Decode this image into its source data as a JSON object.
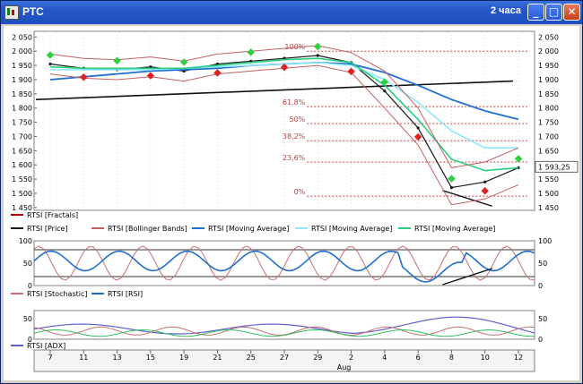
{
  "window": {
    "title": "РТС",
    "timeframe": "2 часа"
  },
  "colors": {
    "price": "#1a1a1a",
    "fractals": "#c00000",
    "bollinger": "#c46060",
    "ma_long": "#1f6fd0",
    "ma_mid": "#8fe8ff",
    "ma_short": "#26d080",
    "stochastic": "#c87070",
    "rsi": "#1f6fd0",
    "adx": "#6060d0"
  },
  "price_panel": {
    "y_ticks": [
      "2 050",
      "2 000",
      "1 950",
      "1 900",
      "1 850",
      "1 800",
      "1 750",
      "1 700",
      "1 650",
      "1 600",
      "1 550",
      "1 500",
      "1 450"
    ],
    "last_price": "1 593,25",
    "fibonacci": [
      {
        "label": "100%",
        "value": 2000
      },
      {
        "label": "61,8%",
        "value": 1805
      },
      {
        "label": "50%",
        "value": 1745
      },
      {
        "label": "38,2%",
        "value": 1685
      },
      {
        "label": "23,6%",
        "value": 1610
      },
      {
        "label": "0%",
        "value": 1490
      }
    ],
    "legend": [
      "RTSI [Fractals]",
      "RTSI [Price]",
      "RTSI [Bollinger Bands]",
      "RTSI [Moving Average]",
      "RTSI [Moving Average]",
      "RTSI [Moving Average]"
    ]
  },
  "oscillator_panel": {
    "y_ticks": [
      "100",
      "50",
      "0"
    ],
    "legend": [
      "RTSI [Stochastic]",
      "RTSI [RSI]"
    ]
  },
  "adx_panel": {
    "y_ticks": [
      "50",
      "0"
    ],
    "legend": [
      "RTSI [ADX]"
    ]
  },
  "x_axis": {
    "ticks": [
      "7",
      "11",
      "13",
      "15",
      "19",
      "21",
      "25",
      "27",
      "29",
      "2",
      "4",
      "6",
      "8",
      "10",
      "12"
    ],
    "month": "Aug"
  },
  "chart_data": {
    "type": "line",
    "ylim": [
      1440,
      2070
    ],
    "x": [
      "7",
      "11",
      "13",
      "15",
      "19",
      "21",
      "25",
      "27",
      "29",
      "2",
      "4",
      "6",
      "8",
      "10",
      "12"
    ],
    "series": [
      {
        "name": "RTSI [Price]",
        "values": [
          1955,
          1940,
          1935,
          1945,
          1930,
          1955,
          1965,
          1975,
          1985,
          1960,
          1860,
          1730,
          1520,
          1540,
          1590
        ]
      },
      {
        "name": "RTSI [Moving Average]",
        "values": [
          1900,
          1910,
          1920,
          1930,
          1935,
          1940,
          1950,
          1955,
          1960,
          1955,
          1925,
          1880,
          1830,
          1790,
          1760
        ]
      },
      {
        "name": "RTSI [Moving Average]",
        "values": [
          1935,
          1935,
          1935,
          1935,
          1940,
          1945,
          1950,
          1955,
          1960,
          1950,
          1900,
          1820,
          1720,
          1660,
          1660
        ]
      },
      {
        "name": "RTSI [Moving Average]",
        "values": [
          1945,
          1940,
          1940,
          1940,
          1940,
          1950,
          1960,
          1970,
          1975,
          1960,
          1880,
          1760,
          1620,
          1580,
          1590
        ]
      }
    ]
  }
}
